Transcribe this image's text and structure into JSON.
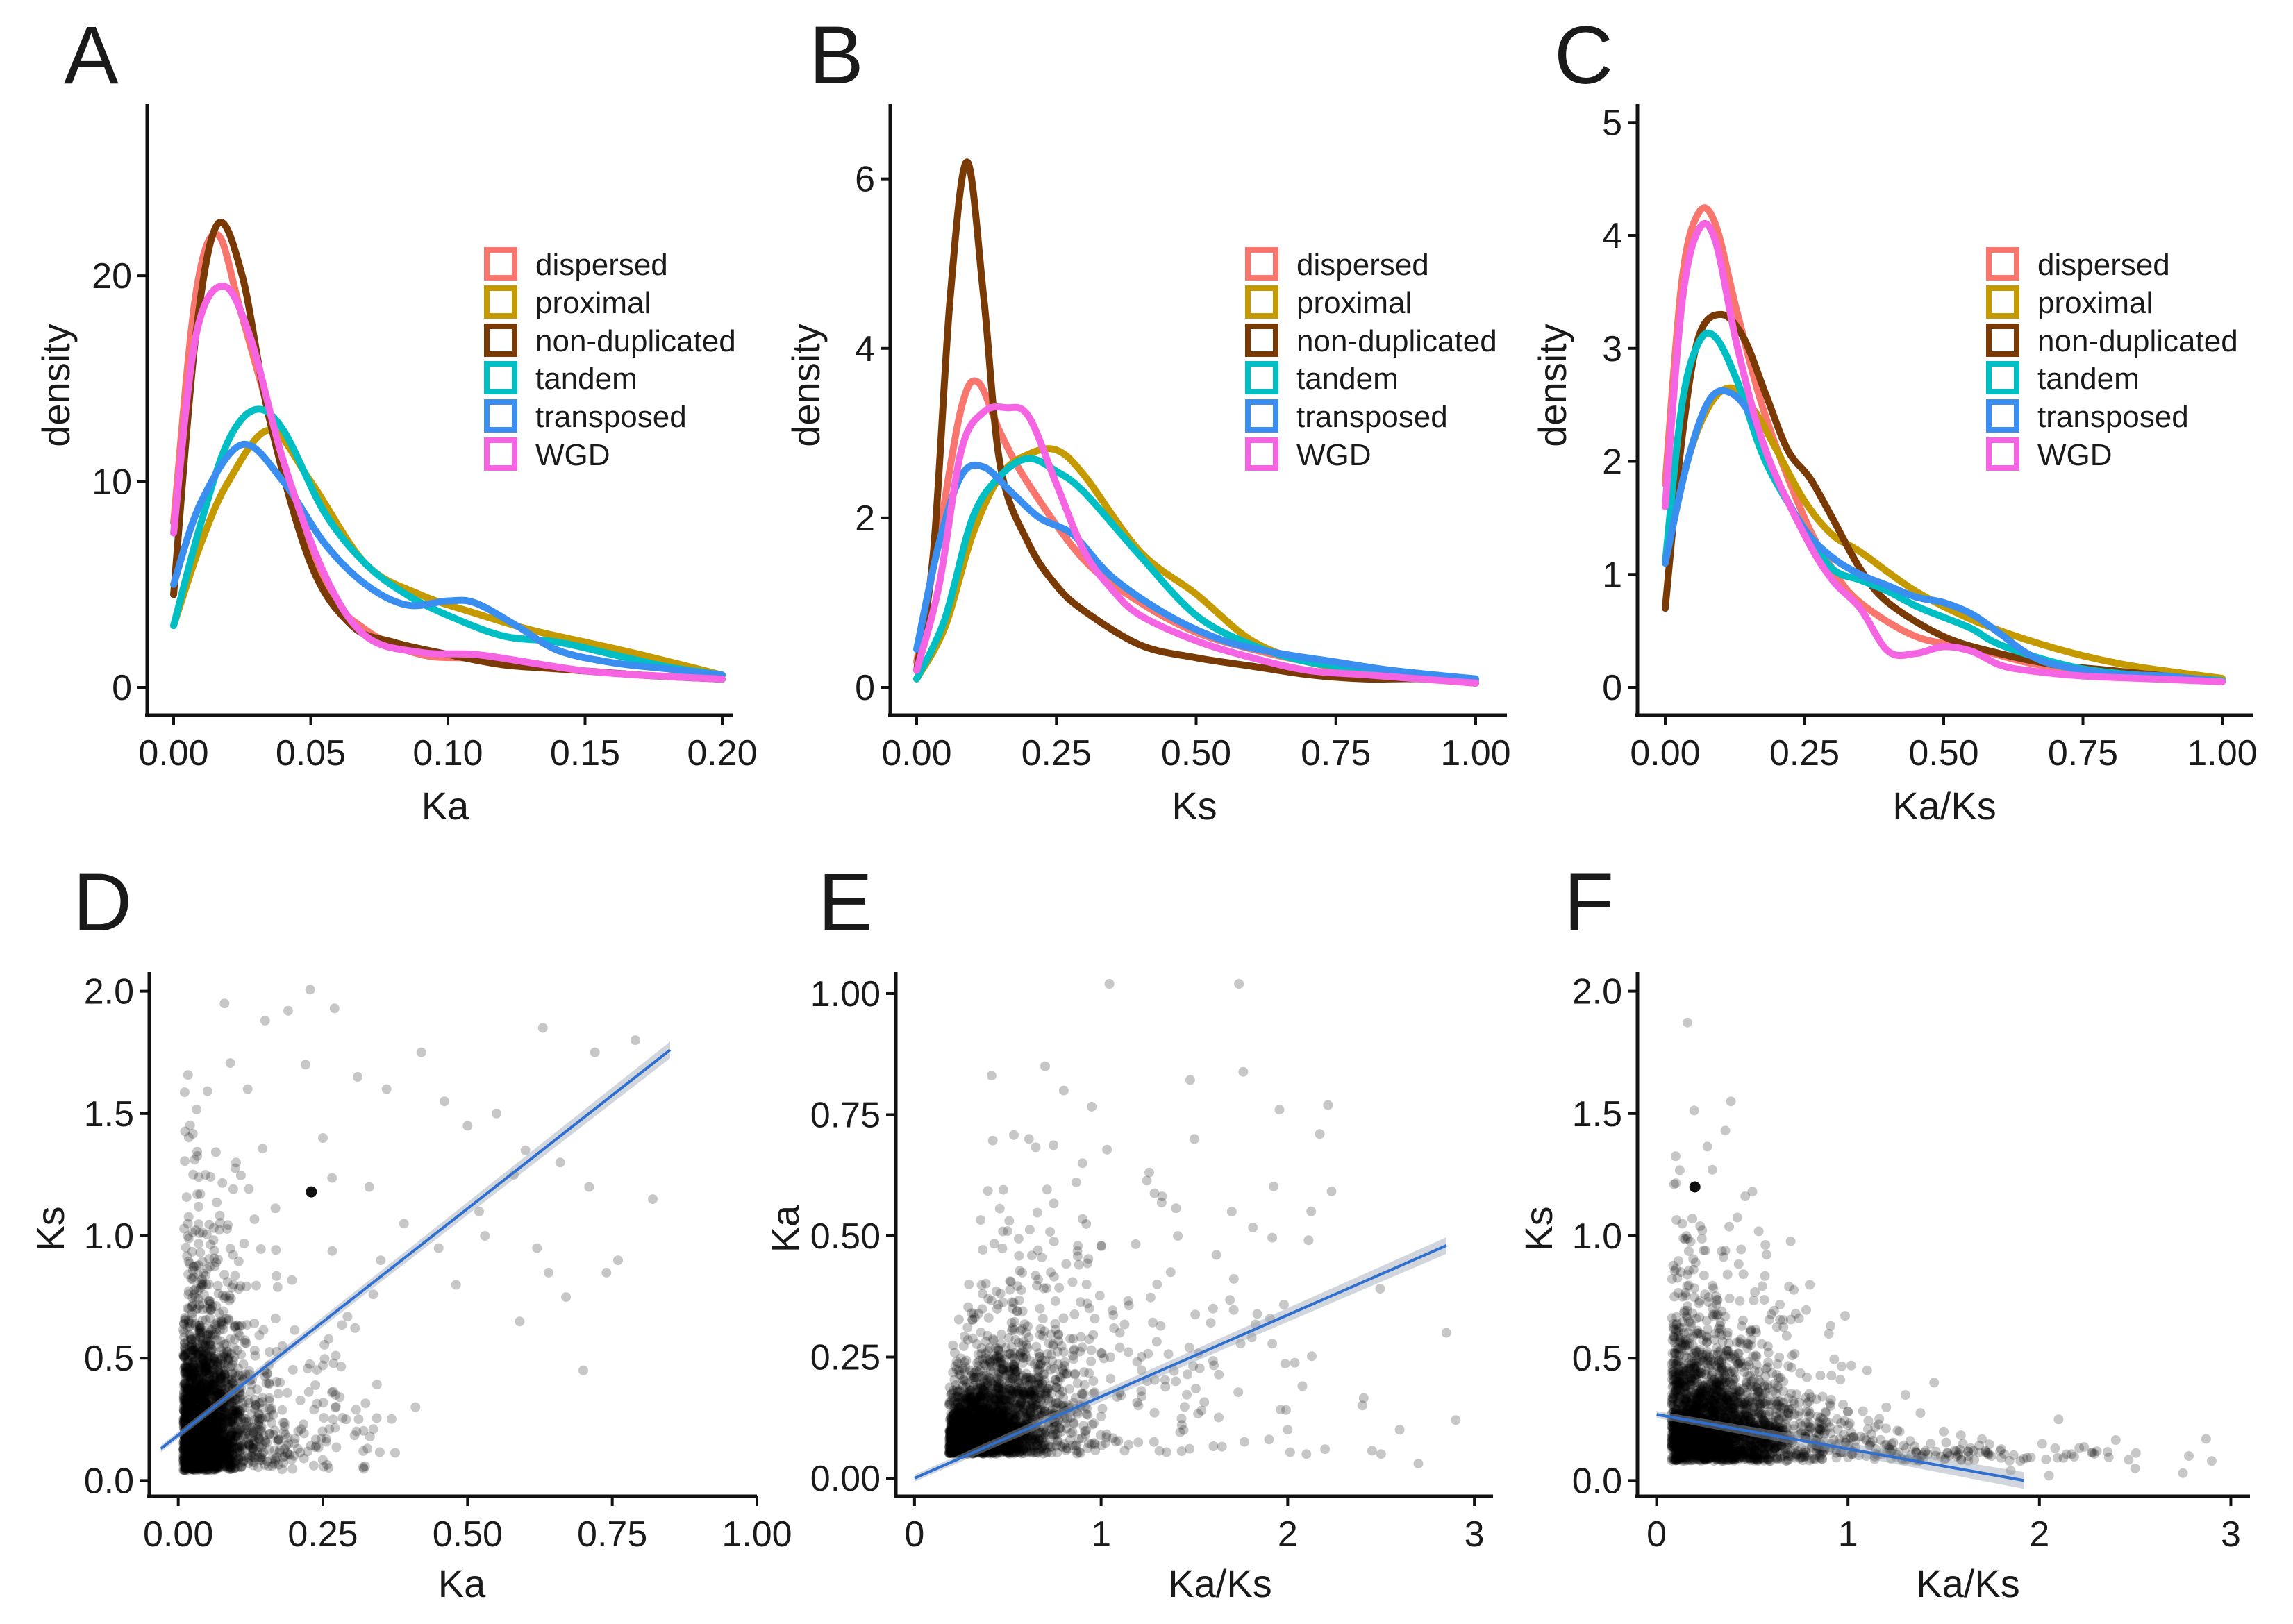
{
  "chart_data": [
    {
      "id": "A",
      "type": "line",
      "panel_label": "A",
      "xlabel": "Ka",
      "ylabel": "density",
      "xlim": [
        0,
        0.2
      ],
      "ylim": [
        0,
        28
      ],
      "xticks": [
        0,
        0.05,
        0.1,
        0.15,
        0.2
      ],
      "xtick_labels": [
        "0.00",
        "0.05",
        "0.10",
        "0.15",
        "0.20"
      ],
      "yticks": [
        0,
        10,
        20
      ],
      "ytick_labels": [
        "0",
        "10",
        "20"
      ],
      "legend": [
        "dispersed",
        "proximal",
        "non-duplicated",
        "tandem",
        "transposed",
        "WGD"
      ],
      "series": [
        {
          "name": "dispersed",
          "color": "#f8766d",
          "x": [
            0,
            0.008,
            0.016,
            0.025,
            0.04,
            0.055,
            0.07,
            0.09,
            0.11,
            0.13,
            0.15,
            0.17,
            0.2
          ],
          "y": [
            8,
            19,
            22,
            18,
            11,
            5,
            2.8,
            1.6,
            1.4,
            1.0,
            0.8,
            0.6,
            0.4
          ]
        },
        {
          "name": "proximal",
          "color": "#c49a00",
          "x": [
            0,
            0.01,
            0.02,
            0.035,
            0.05,
            0.07,
            0.09,
            0.11,
            0.13,
            0.15,
            0.17,
            0.2
          ],
          "y": [
            3,
            7,
            10,
            12.5,
            10,
            6,
            4.5,
            3.6,
            2.8,
            2.2,
            1.6,
            0.6
          ]
        },
        {
          "name": "non-duplicated",
          "color": "#7a3a06",
          "x": [
            0,
            0.008,
            0.016,
            0.025,
            0.035,
            0.05,
            0.065,
            0.08,
            0.1,
            0.12,
            0.14,
            0.17,
            0.2
          ],
          "y": [
            4.5,
            17,
            22.5,
            20,
            13,
            6,
            3,
            2.2,
            1.6,
            1.1,
            0.9,
            0.6,
            0.4
          ]
        },
        {
          "name": "tandem",
          "color": "#00bfc4",
          "x": [
            0,
            0.01,
            0.02,
            0.03,
            0.04,
            0.055,
            0.07,
            0.085,
            0.1,
            0.12,
            0.14,
            0.16,
            0.18,
            0.2
          ],
          "y": [
            3,
            8,
            12,
            13.5,
            12.5,
            8.5,
            6,
            4.5,
            3.5,
            2.5,
            2.2,
            1.6,
            1.0,
            0.6
          ]
        },
        {
          "name": "transposed",
          "color": "#3a8ef0",
          "x": [
            0,
            0.01,
            0.025,
            0.04,
            0.055,
            0.07,
            0.085,
            0.1,
            0.11,
            0.125,
            0.14,
            0.16,
            0.18,
            0.2
          ],
          "y": [
            5,
            9,
            11.8,
            10,
            7,
            5,
            4,
            4.2,
            4.1,
            3.0,
            1.8,
            1.2,
            0.9,
            0.6
          ]
        },
        {
          "name": "WGD",
          "color": "#f564e3",
          "x": [
            0,
            0.008,
            0.018,
            0.028,
            0.04,
            0.055,
            0.07,
            0.09,
            0.11,
            0.13,
            0.15,
            0.17,
            0.2
          ],
          "y": [
            7.5,
            17,
            19.5,
            17,
            11,
            5.5,
            2.5,
            1.7,
            1.6,
            1.2,
            0.8,
            0.6,
            0.4
          ]
        }
      ]
    },
    {
      "id": "B",
      "type": "line",
      "panel_label": "B",
      "xlabel": "Ks",
      "ylabel": "density",
      "xlim": [
        0,
        1
      ],
      "ylim": [
        0,
        6.8
      ],
      "xticks": [
        0,
        0.25,
        0.5,
        0.75,
        1
      ],
      "xtick_labels": [
        "0.00",
        "0.25",
        "0.50",
        "0.75",
        "1.00"
      ],
      "yticks": [
        0,
        2,
        4,
        6
      ],
      "ytick_labels": [
        "0",
        "2",
        "4",
        "6"
      ],
      "legend": [
        "dispersed",
        "proximal",
        "non-duplicated",
        "tandem",
        "transposed",
        "WGD"
      ],
      "series": [
        {
          "name": "dispersed",
          "color": "#f8766d",
          "x": [
            0,
            0.04,
            0.08,
            0.11,
            0.15,
            0.2,
            0.3,
            0.4,
            0.5,
            0.6,
            0.7,
            0.8,
            0.9,
            1.0
          ],
          "y": [
            0.3,
            1.8,
            3.3,
            3.6,
            3.0,
            2.4,
            1.5,
            1.0,
            0.65,
            0.45,
            0.3,
            0.2,
            0.15,
            0.08
          ]
        },
        {
          "name": "proximal",
          "color": "#c49a00",
          "x": [
            0,
            0.05,
            0.1,
            0.15,
            0.2,
            0.25,
            0.3,
            0.4,
            0.5,
            0.6,
            0.7,
            0.8,
            0.9,
            1.0
          ],
          "y": [
            0.1,
            0.7,
            1.8,
            2.5,
            2.75,
            2.8,
            2.5,
            1.6,
            1.1,
            0.55,
            0.3,
            0.2,
            0.15,
            0.1
          ]
        },
        {
          "name": "non-duplicated",
          "color": "#7a3a06",
          "x": [
            0,
            0.03,
            0.06,
            0.09,
            0.12,
            0.15,
            0.2,
            0.25,
            0.3,
            0.4,
            0.5,
            0.6,
            0.7,
            0.8,
            0.9,
            1.0
          ],
          "y": [
            0.2,
            1.6,
            4.6,
            6.2,
            4.6,
            2.6,
            1.7,
            1.2,
            0.9,
            0.5,
            0.35,
            0.25,
            0.15,
            0.1,
            0.1,
            0.05
          ]
        },
        {
          "name": "tandem",
          "color": "#00bfc4",
          "x": [
            0,
            0.05,
            0.1,
            0.15,
            0.2,
            0.25,
            0.3,
            0.4,
            0.5,
            0.6,
            0.7,
            0.8,
            0.9,
            1.0
          ],
          "y": [
            0.1,
            0.8,
            2.0,
            2.5,
            2.7,
            2.55,
            2.3,
            1.55,
            0.85,
            0.5,
            0.3,
            0.22,
            0.15,
            0.1
          ]
        },
        {
          "name": "transposed",
          "color": "#3a8ef0",
          "x": [
            0,
            0.04,
            0.08,
            0.12,
            0.17,
            0.22,
            0.28,
            0.35,
            0.45,
            0.55,
            0.65,
            0.75,
            0.85,
            1.0
          ],
          "y": [
            0.45,
            1.7,
            2.5,
            2.6,
            2.3,
            2.0,
            1.8,
            1.3,
            0.85,
            0.55,
            0.4,
            0.3,
            0.2,
            0.1
          ]
        },
        {
          "name": "WGD",
          "color": "#f564e3",
          "x": [
            0,
            0.04,
            0.08,
            0.12,
            0.16,
            0.2,
            0.25,
            0.3,
            0.35,
            0.4,
            0.5,
            0.6,
            0.7,
            0.8,
            0.9,
            1.0
          ],
          "y": [
            0.2,
            1.2,
            2.8,
            3.25,
            3.3,
            3.2,
            2.4,
            1.6,
            1.15,
            0.85,
            0.55,
            0.35,
            0.2,
            0.15,
            0.1,
            0.05
          ]
        }
      ]
    },
    {
      "id": "C",
      "type": "line",
      "panel_label": "C",
      "xlabel": "Ka/Ks",
      "ylabel": "density",
      "xlim": [
        0,
        1
      ],
      "ylim": [
        0,
        5.1
      ],
      "xticks": [
        0,
        0.25,
        0.5,
        0.75,
        1
      ],
      "xtick_labels": [
        "0.00",
        "0.25",
        "0.50",
        "0.75",
        "1.00"
      ],
      "yticks": [
        0,
        1,
        2,
        3,
        4,
        5
      ],
      "ytick_labels": [
        "0",
        "1",
        "2",
        "3",
        "4",
        "5"
      ],
      "legend": [
        "dispersed",
        "proximal",
        "non-duplicated",
        "tandem",
        "transposed",
        "WGD"
      ],
      "series": [
        {
          "name": "dispersed",
          "color": "#f8766d",
          "x": [
            0,
            0.03,
            0.06,
            0.09,
            0.13,
            0.18,
            0.25,
            0.3,
            0.35,
            0.45,
            0.55,
            0.65,
            0.75,
            0.85,
            1.0
          ],
          "y": [
            1.8,
            3.6,
            4.2,
            4.1,
            3.3,
            2.4,
            1.5,
            1.05,
            0.75,
            0.45,
            0.35,
            0.22,
            0.14,
            0.1,
            0.06
          ]
        },
        {
          "name": "proximal",
          "color": "#c49a00",
          "x": [
            0,
            0.04,
            0.08,
            0.12,
            0.16,
            0.2,
            0.25,
            0.3,
            0.35,
            0.45,
            0.55,
            0.65,
            0.75,
            0.85,
            1.0
          ],
          "y": [
            1.1,
            2.0,
            2.5,
            2.65,
            2.45,
            2.1,
            1.65,
            1.35,
            1.2,
            0.85,
            0.6,
            0.42,
            0.28,
            0.18,
            0.08
          ]
        },
        {
          "name": "non-duplicated",
          "color": "#7a3a06",
          "x": [
            0,
            0.03,
            0.06,
            0.1,
            0.14,
            0.18,
            0.22,
            0.26,
            0.3,
            0.35,
            0.4,
            0.5,
            0.6,
            0.7,
            0.8,
            1.0
          ],
          "y": [
            0.7,
            2.2,
            3.1,
            3.3,
            3.1,
            2.6,
            2.1,
            1.85,
            1.5,
            1.05,
            0.75,
            0.45,
            0.3,
            0.2,
            0.15,
            0.05
          ]
        },
        {
          "name": "tandem",
          "color": "#00bfc4",
          "x": [
            0,
            0.03,
            0.06,
            0.09,
            0.13,
            0.18,
            0.25,
            0.3,
            0.35,
            0.4,
            0.45,
            0.5,
            0.55,
            0.6,
            0.7,
            0.8,
            1.0
          ],
          "y": [
            1.1,
            2.5,
            3.05,
            3.1,
            2.7,
            2.0,
            1.4,
            1.05,
            0.95,
            0.85,
            0.72,
            0.62,
            0.52,
            0.38,
            0.22,
            0.13,
            0.06
          ]
        },
        {
          "name": "transposed",
          "color": "#3a8ef0",
          "x": [
            0,
            0.04,
            0.08,
            0.12,
            0.16,
            0.2,
            0.25,
            0.3,
            0.35,
            0.4,
            0.45,
            0.5,
            0.55,
            0.6,
            0.65,
            0.7,
            0.8,
            0.9,
            1.0
          ],
          "y": [
            1.1,
            2.0,
            2.55,
            2.6,
            2.35,
            1.85,
            1.4,
            1.15,
            1.0,
            0.9,
            0.8,
            0.75,
            0.65,
            0.48,
            0.3,
            0.2,
            0.12,
            0.1,
            0.05
          ]
        },
        {
          "name": "WGD",
          "color": "#f564e3",
          "x": [
            0,
            0.03,
            0.06,
            0.09,
            0.13,
            0.18,
            0.25,
            0.3,
            0.35,
            0.4,
            0.45,
            0.5,
            0.55,
            0.6,
            0.65,
            0.75,
            0.85,
            1.0
          ],
          "y": [
            1.6,
            3.4,
            4.05,
            3.95,
            3.0,
            2.1,
            1.35,
            0.95,
            0.7,
            0.32,
            0.3,
            0.36,
            0.32,
            0.2,
            0.15,
            0.1,
            0.08,
            0.05
          ]
        }
      ]
    },
    {
      "id": "D",
      "type": "scatter",
      "panel_label": "D",
      "xlabel": "Ka",
      "ylabel": "Ks",
      "xlim": [
        -0.05,
        1.0
      ],
      "ylim": [
        -0.05,
        2.05
      ],
      "xticks": [
        0,
        0.25,
        0.5,
        0.75,
        1
      ],
      "xtick_labels": [
        "0.00",
        "0.25",
        "0.50",
        "0.75",
        "1.00"
      ],
      "yticks": [
        0,
        0.5,
        1,
        1.5,
        2
      ],
      "ytick_labels": [
        "0.0",
        "0.5",
        "1.0",
        "1.5",
        "2.0"
      ],
      "trend_line": {
        "x": [
          -0.03,
          0.85
        ],
        "y": [
          0.13,
          1.76
        ]
      },
      "highlight_point": {
        "x": 0.23,
        "y": 1.18
      },
      "outlier_points": {
        "x": [
          0.08,
          0.15,
          0.19,
          0.22,
          0.27,
          0.31,
          0.36,
          0.42,
          0.46,
          0.5,
          0.55,
          0.6,
          0.63,
          0.66,
          0.71,
          0.76,
          0.82,
          0.12,
          0.25,
          0.33,
          0.39,
          0.45,
          0.52,
          0.58,
          0.64,
          0.72,
          0.79,
          0.7,
          0.67,
          0.59,
          0.41,
          0.29,
          0.18,
          0.1,
          0.35,
          0.48,
          0.53,
          0.62,
          0.74
        ],
        "y": [
          1.95,
          1.88,
          1.92,
          1.7,
          1.93,
          1.65,
          1.6,
          1.75,
          1.55,
          1.45,
          1.5,
          1.35,
          1.85,
          1.3,
          1.2,
          0.9,
          1.15,
          1.6,
          1.4,
          1.2,
          1.05,
          0.95,
          1.1,
          1.25,
          0.85,
          1.75,
          1.8,
          0.45,
          0.75,
          0.65,
          0.3,
          0.25,
          0.55,
          1.3,
          0.9,
          0.8,
          1.0,
          0.95,
          0.85
        ]
      },
      "cluster": {
        "x_center": 0.02,
        "y_center": 0.2,
        "x_spread": 0.14,
        "y_spread": 0.45,
        "n": 2600,
        "seed": 11
      }
    },
    {
      "id": "E",
      "type": "scatter",
      "panel_label": "E",
      "xlabel": "Ka/Ks",
      "ylabel": "Ka",
      "xlim": [
        -0.1,
        3.1
      ],
      "ylim": [
        -0.03,
        1.03
      ],
      "xticks": [
        0,
        1,
        2,
        3
      ],
      "xtick_labels": [
        "0",
        "1",
        "2",
        "3"
      ],
      "yticks": [
        0,
        0.25,
        0.5,
        0.75,
        1
      ],
      "ytick_labels": [
        "0.00",
        "0.25",
        "0.50",
        "0.75",
        "1.00"
      ],
      "trend_line": {
        "x": [
          0,
          2.85
        ],
        "y": [
          0.0,
          0.48
        ]
      },
      "outlier_points": {
        "x": [
          0.7,
          0.8,
          1.0,
          1.05,
          1.4,
          1.5,
          1.7,
          2.0,
          2.1,
          2.4,
          2.6,
          2.7,
          2.85,
          2.9,
          1.2,
          1.3,
          1.6,
          1.9,
          2.2,
          0.9,
          1.1,
          2.5
        ],
        "y": [
          0.85,
          0.8,
          0.48,
          0.25,
          0.2,
          0.7,
          0.55,
          0.1,
          0.05,
          0.15,
          0.1,
          0.03,
          0.3,
          0.12,
          0.15,
          0.4,
          0.35,
          0.08,
          0.06,
          0.65,
          0.3,
          0.05
        ]
      },
      "cluster": {
        "x_center": 0.25,
        "y_center": 0.05,
        "x_spread": 0.8,
        "y_spread": 0.55,
        "n": 2600,
        "seed": 23
      }
    },
    {
      "id": "F",
      "type": "scatter",
      "panel_label": "F",
      "xlabel": "Ka/Ks",
      "ylabel": "Ks",
      "xlim": [
        -0.1,
        3.1
      ],
      "ylim": [
        -0.05,
        2.05
      ],
      "xticks": [
        0,
        1,
        2,
        3
      ],
      "xtick_labels": [
        "0",
        "1",
        "2",
        "3"
      ],
      "yticks": [
        0,
        0.5,
        1,
        1.5,
        2
      ],
      "ytick_labels": [
        "0.0",
        "0.5",
        "1.0",
        "1.5",
        "2.0"
      ],
      "trend_line": {
        "x": [
          0,
          1.92
        ],
        "y": [
          0.27,
          0.0
        ]
      },
      "highlight_point": {
        "x": 0.2,
        "y": 1.2
      },
      "outlier_points": {
        "x": [
          1.5,
          1.6,
          1.75,
          1.9,
          2.1,
          2.3,
          2.5,
          2.75,
          2.9,
          1.3,
          1.2,
          1.45,
          1.1,
          2.05,
          1.85,
          0.8,
          0.9
        ],
        "y": [
          0.2,
          0.15,
          0.1,
          0.08,
          0.25,
          0.12,
          0.05,
          0.03,
          0.08,
          0.35,
          0.3,
          0.4,
          0.45,
          0.02,
          0.04,
          0.8,
          0.6
        ]
      },
      "cluster": {
        "x_center": 0.15,
        "y_center": 0.2,
        "x_spread": 0.9,
        "y_spread": 0.45,
        "n": 2600,
        "seed": 37
      }
    }
  ]
}
